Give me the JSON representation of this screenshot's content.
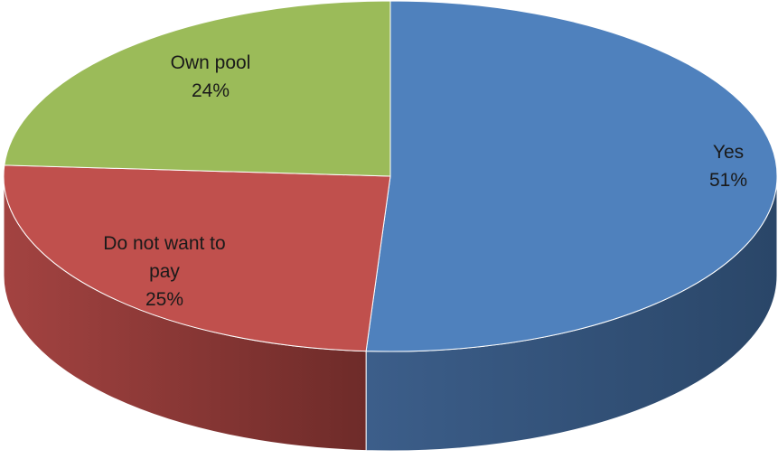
{
  "chart_data": {
    "type": "pie",
    "title": "",
    "style": "3d",
    "slices": [
      {
        "label_lines": [
          "Yes"
        ],
        "value": 51,
        "value_text": "51%",
        "color": "#4F81BD",
        "side_dark": "#2A4668",
        "side_light": "#3C5E8A"
      },
      {
        "label_lines": [
          "Do not want to",
          "pay"
        ],
        "value": 25,
        "value_text": "25%",
        "color": "#C0504D",
        "side_dark": "#6E2B29",
        "side_light": "#A34341"
      },
      {
        "label_lines": [
          "Own pool"
        ],
        "value": 24,
        "value_text": "24%",
        "color": "#9BBB59",
        "side_dark": "#5A6E33",
        "side_light": "#7E9A48"
      }
    ]
  }
}
